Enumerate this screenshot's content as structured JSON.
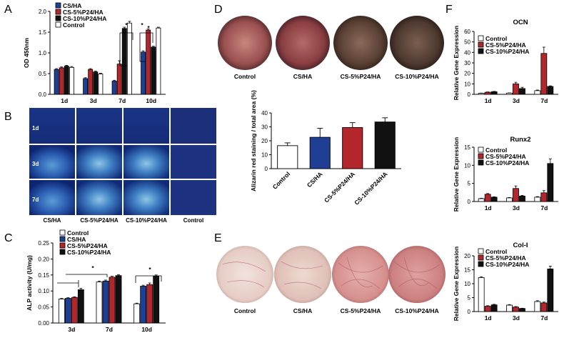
{
  "colors": {
    "CS/HA": "#1f3f94",
    "CS-5%P24/HA": "#b3262c",
    "CS-10%P24/HA": "#111111",
    "Control": "#ffffff"
  },
  "panels": {
    "A": "A",
    "B": "B",
    "C": "C",
    "D": "D",
    "E": "E",
    "F": "F"
  },
  "chart_data": [
    {
      "panel": "A",
      "type": "bar",
      "ylabel": "OD 450nm",
      "ylim": [
        0,
        2.0
      ],
      "yticks": [
        "0.0",
        "0.5",
        "1.0",
        "1.5",
        "2.0"
      ],
      "categories": [
        "1d",
        "3d",
        "7d",
        "10d"
      ],
      "legend": [
        "CS/HA",
        "CS-5%P24/HA",
        "CS-10%P24/HA",
        "Control"
      ],
      "legend_position": "top-left",
      "series": [
        {
          "name": "CS/HA",
          "values": [
            0.6,
            0.38,
            0.32,
            1.02
          ],
          "errors": [
            0.02,
            0.02,
            0.02,
            0.03
          ]
        },
        {
          "name": "CS-5%P24/HA",
          "values": [
            0.64,
            0.6,
            0.73,
            1.55
          ],
          "errors": [
            0.02,
            0.02,
            0.08,
            0.03
          ]
        },
        {
          "name": "CS-10%P24/HA",
          "values": [
            0.68,
            0.54,
            1.59,
            1.14
          ],
          "errors": [
            0.02,
            0.02,
            0.03,
            0.02
          ]
        },
        {
          "name": "Control",
          "values": [
            0.65,
            0.49,
            1.72,
            1.6
          ],
          "errors": [
            0.02,
            0.02,
            0.04,
            0.02
          ]
        }
      ],
      "annotations": [
        "*",
        "*",
        "*"
      ]
    },
    {
      "panel": "C",
      "type": "bar",
      "ylabel": "ALP activity (U/mg)",
      "ylim": [
        0,
        0.25
      ],
      "yticks": [
        "0.00",
        "0.05",
        "0.10",
        "0.15",
        "0.20",
        "0.25"
      ],
      "categories": [
        "3d",
        "7d",
        "10d"
      ],
      "legend": [
        "Control",
        "CS/HA",
        "CS-5%P24/HA",
        "CS-10%P24/HA"
      ],
      "legend_position": "top-left",
      "series": [
        {
          "name": "Control",
          "values": [
            0.075,
            0.128,
            0.06
          ],
          "errors": [
            0.002,
            0.003,
            0.002
          ]
        },
        {
          "name": "CS/HA",
          "values": [
            0.077,
            0.131,
            0.115
          ],
          "errors": [
            0.002,
            0.003,
            0.003
          ]
        },
        {
          "name": "CS-5%P24/HA",
          "values": [
            0.08,
            0.143,
            0.12
          ],
          "errors": [
            0.002,
            0.003,
            0.005
          ]
        },
        {
          "name": "CS-10%P24/HA",
          "values": [
            0.104,
            0.148,
            0.146
          ],
          "errors": [
            0.004,
            0.003,
            0.004
          ]
        }
      ],
      "annotations": [
        "*",
        "*"
      ]
    },
    {
      "panel": "D",
      "type": "bar",
      "ylabel": "Alizarin red staining / total area (%)",
      "ylim": [
        0,
        40
      ],
      "yticks": [
        "0",
        "10",
        "20",
        "30",
        "40"
      ],
      "categories": [
        "Control",
        "CS/HA",
        "CS-5%P24/HA",
        "CS-10%P24/HA"
      ],
      "values": [
        16.5,
        22.5,
        29.5,
        33.5
      ],
      "errors": [
        2.0,
        6.5,
        3.5,
        3.0
      ]
    },
    {
      "panel": "F",
      "type": "bar",
      "title": "OCN",
      "ylabel": "Relative Gene Expression",
      "ylim": [
        0,
        60
      ],
      "yticks": [
        "0",
        "10",
        "20",
        "30",
        "40",
        "50",
        "60"
      ],
      "categories": [
        "1d",
        "3d",
        "7d"
      ],
      "legend": [
        "Control",
        "CS-5%P24/HA",
        "CS-10%P24/HA"
      ],
      "series": [
        {
          "name": "Control",
          "values": [
            1.0,
            1.2,
            3.5
          ],
          "errors": [
            0.2,
            0.2,
            0.6
          ]
        },
        {
          "name": "CS-5%P24/HA",
          "values": [
            2.0,
            10.0,
            39.0
          ],
          "errors": [
            0.3,
            1.5,
            6.0
          ]
        },
        {
          "name": "CS-10%P24/HA",
          "values": [
            2.5,
            5.5,
            7.5
          ],
          "errors": [
            0.3,
            1.2,
            0.6
          ]
        }
      ]
    },
    {
      "panel": "F",
      "type": "bar",
      "title": "Runx2",
      "ylabel": "Relative Gene Expression",
      "ylim": [
        0,
        15
      ],
      "yticks": [
        "0",
        "5",
        "10",
        "15"
      ],
      "categories": [
        "1d",
        "3d",
        "7d"
      ],
      "legend": [
        "Control",
        "CS-5%P24/HA",
        "CS-10%P24/HA"
      ],
      "series": [
        {
          "name": "Control",
          "values": [
            0.8,
            1.0,
            1.2
          ],
          "errors": [
            0.1,
            0.1,
            0.15
          ]
        },
        {
          "name": "CS-5%P24/HA",
          "values": [
            2.0,
            3.6,
            2.4
          ],
          "errors": [
            0.2,
            0.7,
            0.6
          ]
        },
        {
          "name": "CS-10%P24/HA",
          "values": [
            1.2,
            1.5,
            10.5
          ],
          "errors": [
            0.1,
            0.2,
            1.3
          ]
        }
      ]
    },
    {
      "panel": "F",
      "type": "bar",
      "title": "Col-I",
      "ylabel": "Relative Gene Expression",
      "ylim": [
        0,
        20
      ],
      "yticks": [
        "0",
        "5",
        "10",
        "15",
        "20"
      ],
      "categories": [
        "1d",
        "3d",
        "7d"
      ],
      "legend": [
        "Control",
        "CS-5%P24/HA",
        "CS-10%P24/HA"
      ],
      "series": [
        {
          "name": "Control",
          "values": [
            12.2,
            2.3,
            3.6
          ],
          "errors": [
            0.3,
            0.2,
            0.3
          ]
        },
        {
          "name": "CS-5%P24/HA",
          "values": [
            1.9,
            1.6,
            3.1
          ],
          "errors": [
            0.2,
            0.2,
            0.3
          ]
        },
        {
          "name": "CS-10%P24/HA",
          "values": [
            2.4,
            1.1,
            15.3
          ],
          "errors": [
            0.2,
            0.1,
            1.0
          ]
        }
      ]
    }
  ],
  "panel_B": {
    "rows": [
      "1d",
      "3d",
      "7d"
    ],
    "columns": [
      "CS/HA",
      "CS-5%P24/HA",
      "CS-10%P24/HA",
      "Control"
    ]
  },
  "panel_D_images": [
    "Control",
    "CS/HA",
    "CS-5%P24/HA",
    "CS-10%P24/HA"
  ],
  "panel_E_images": [
    "Control",
    "CS/HA",
    "CS-5%P24/HA",
    "CS-10%P24/HA"
  ]
}
